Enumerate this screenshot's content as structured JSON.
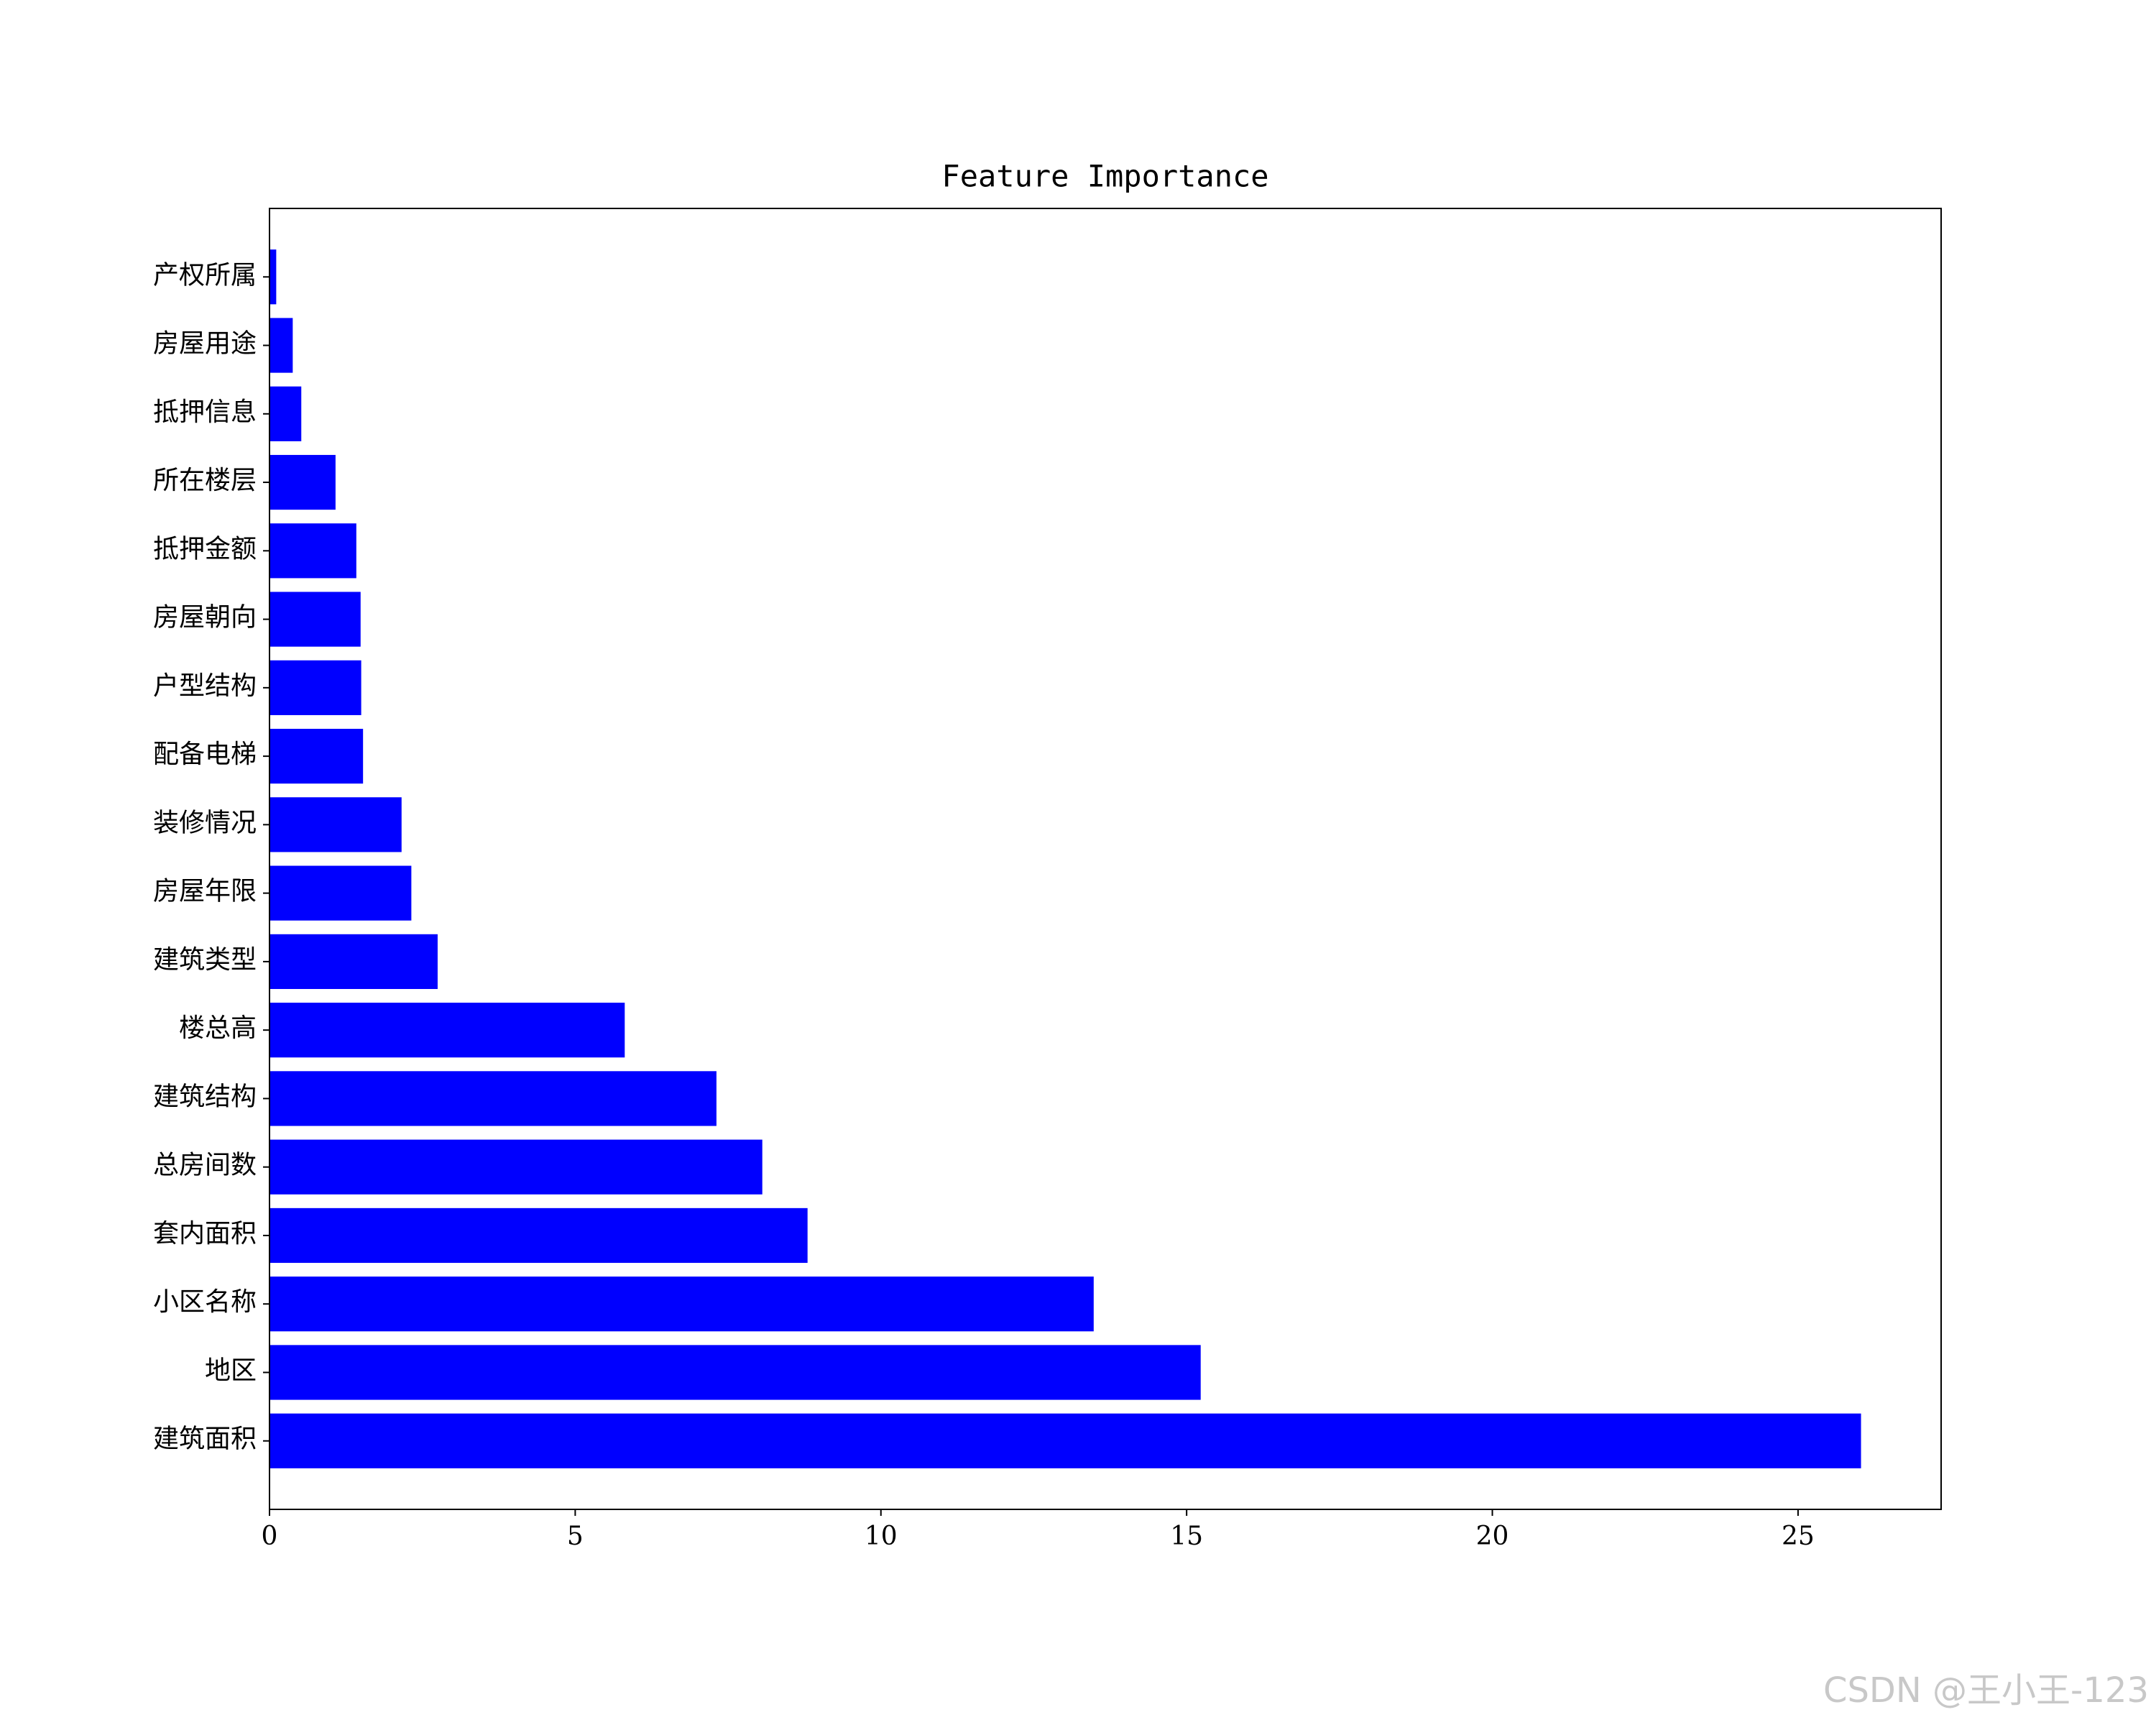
{
  "chart_data": {
    "type": "barh",
    "title": "Feature Importance",
    "categories": [
      "建筑面积",
      "地区",
      "小区名称",
      "套内面积",
      "总房间数",
      "建筑结构",
      "楼总高",
      "建筑类型",
      "房屋年限",
      "装修情况",
      "配备电梯",
      "户型结构",
      "房屋朝向",
      "抵押金额",
      "所在楼层",
      "抵押信息",
      "房屋用途",
      "产权所属"
    ],
    "values": [
      26.03,
      15.23,
      13.48,
      8.8,
      8.06,
      7.31,
      5.81,
      2.75,
      2.32,
      2.16,
      1.53,
      1.5,
      1.49,
      1.42,
      1.08,
      0.52,
      0.38,
      0.11
    ],
    "color": "#0000ff",
    "xlim": [
      0,
      27.34
    ],
    "xticks": [
      0,
      5,
      10,
      15,
      20,
      25
    ],
    "watermark": "CSDN @王小王-123"
  }
}
